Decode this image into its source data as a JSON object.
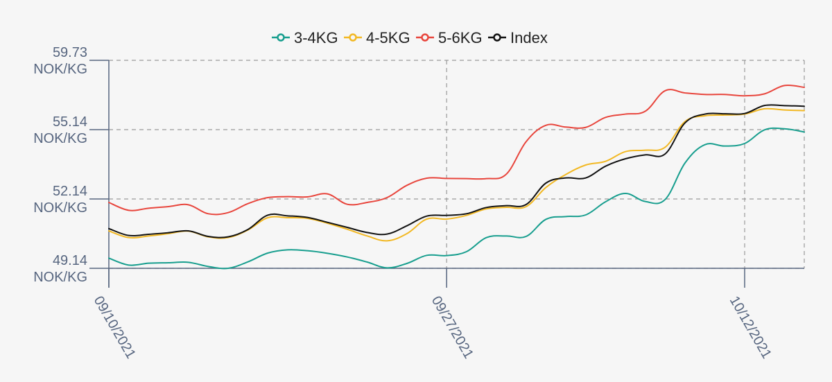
{
  "chart_data": {
    "type": "line",
    "title": "",
    "xlabel": "",
    "ylabel": "",
    "legend_position": "top-center",
    "grid": true,
    "x_ticks": [
      "09/10/2021",
      "09/27/2021",
      "10/12/2021"
    ],
    "y_ticks": [
      {
        "value": 49.14,
        "label": "49.14",
        "unit": "NOK/KG"
      },
      {
        "value": 52.14,
        "label": "52.14",
        "unit": "NOK/KG"
      },
      {
        "value": 55.14,
        "label": "55.14",
        "unit": "NOK/KG"
      },
      {
        "value": 59.73,
        "label": "59.73",
        "unit": "NOK/KG"
      }
    ],
    "x": [
      "2021-09-10",
      "2021-09-11",
      "2021-09-12",
      "2021-09-13",
      "2021-09-14",
      "2021-09-15",
      "2021-09-16",
      "2021-09-17",
      "2021-09-18",
      "2021-09-19",
      "2021-09-20",
      "2021-09-21",
      "2021-09-22",
      "2021-09-23",
      "2021-09-24",
      "2021-09-25",
      "2021-09-26",
      "2021-09-27",
      "2021-09-28",
      "2021-09-29",
      "2021-09-30",
      "2021-10-01",
      "2021-10-02",
      "2021-10-03",
      "2021-10-04",
      "2021-10-05",
      "2021-10-06",
      "2021-10-07",
      "2021-10-08",
      "2021-10-09",
      "2021-10-10",
      "2021-10-11",
      "2021-10-12",
      "2021-10-13",
      "2021-10-14",
      "2021-10-15"
    ],
    "series": [
      {
        "name": "3-4KG",
        "color": "#179e8e",
        "values": [
          49.58,
          49.28,
          49.36,
          49.38,
          49.4,
          49.22,
          49.14,
          49.42,
          49.8,
          49.94,
          49.9,
          49.79,
          49.63,
          49.41,
          49.16,
          49.35,
          49.7,
          49.69,
          49.86,
          50.47,
          50.54,
          50.52,
          51.26,
          51.38,
          51.45,
          52.02,
          52.38,
          52.03,
          52.12,
          53.7,
          54.49,
          54.43,
          54.54,
          55.13,
          55.2,
          55.04
        ]
      },
      {
        "name": "4-5KG",
        "color": "#f2b823",
        "values": [
          50.76,
          50.47,
          50.54,
          50.64,
          50.75,
          50.5,
          50.47,
          50.8,
          51.33,
          51.33,
          51.3,
          51.09,
          50.83,
          50.54,
          50.33,
          50.64,
          51.27,
          51.27,
          51.43,
          51.71,
          51.78,
          51.81,
          52.64,
          53.2,
          53.61,
          53.77,
          54.19,
          54.25,
          54.38,
          55.68,
          56.06,
          56.11,
          56.17,
          56.52,
          56.44,
          56.4
        ]
      },
      {
        "name": "5-6KG",
        "color": "#e8453c",
        "values": [
          51.99,
          51.65,
          51.74,
          51.81,
          51.89,
          51.5,
          51.55,
          51.94,
          52.2,
          52.24,
          52.23,
          52.36,
          51.91,
          51.99,
          52.2,
          52.73,
          53.04,
          53.03,
          53.02,
          53.02,
          53.21,
          54.62,
          55.43,
          55.31,
          55.29,
          55.95,
          56.17,
          56.36,
          57.72,
          57.57,
          57.47,
          57.47,
          57.38,
          57.51,
          58.06,
          57.94
        ]
      },
      {
        "name": "Index",
        "color": "#111111",
        "values": [
          50.86,
          50.56,
          50.61,
          50.68,
          50.76,
          50.52,
          50.5,
          50.82,
          51.44,
          51.41,
          51.34,
          51.13,
          50.91,
          50.69,
          50.62,
          50.98,
          51.4,
          51.43,
          51.5,
          51.77,
          51.85,
          51.9,
          52.83,
          53.05,
          53.05,
          53.56,
          53.88,
          54.05,
          54.09,
          55.59,
          56.17,
          56.19,
          56.21,
          56.74,
          56.73,
          56.69
        ]
      }
    ],
    "ylim": [
      49.14,
      59.73
    ]
  }
}
